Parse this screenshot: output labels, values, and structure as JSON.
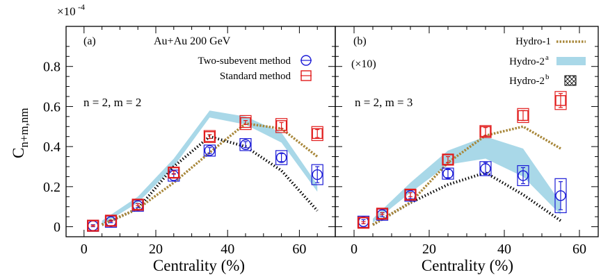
{
  "figure": {
    "y_multiplier": "×10",
    "y_multiplier_exponent": "-4"
  },
  "chart_data": [
    {
      "type": "scatter",
      "panel_label": "(a)",
      "title": "Au+Au 200 GeV",
      "annotation": "n = 2, m = 2",
      "xlabel": "Centrality (%)",
      "ylabel": "C",
      "ylabel_subscript": "n+m,nm",
      "xlim": [
        -5,
        70
      ],
      "ylim": [
        -0.05,
        1.0
      ],
      "xticks": [
        0,
        20,
        40,
        60
      ],
      "yticks": [
        0,
        0.2,
        0.4,
        0.6,
        0.8
      ],
      "ytick_labels": [
        "0",
        "0.2",
        "0.4",
        "0.6",
        "0.8"
      ],
      "grid": false,
      "legend_position": "top-right",
      "series": [
        {
          "name": "Two-subevent method",
          "kind": "points",
          "marker": "circle",
          "color": "#1a1ad6",
          "x": [
            2.5,
            7.5,
            15,
            25,
            35,
            45,
            55,
            65
          ],
          "y": [
            0.005,
            0.025,
            0.105,
            0.255,
            0.38,
            0.41,
            0.345,
            0.26
          ],
          "err": [
            0.005,
            0.005,
            0.01,
            0.01,
            0.015,
            0.015,
            0.02,
            0.04
          ],
          "sys": [
            0.02,
            0.02,
            0.025,
            0.025,
            0.025,
            0.03,
            0.035,
            0.05
          ]
        },
        {
          "name": "Standard method",
          "kind": "points",
          "marker": "square",
          "color": "#e11b1b",
          "x": [
            2.5,
            7.5,
            15,
            25,
            35,
            45,
            55,
            65
          ],
          "y": [
            0.005,
            0.03,
            0.11,
            0.27,
            0.45,
            0.52,
            0.505,
            0.465
          ],
          "err": [
            0.003,
            0.003,
            0.005,
            0.008,
            0.01,
            0.01,
            0.015,
            0.02
          ],
          "sys": [
            0.02,
            0.02,
            0.02,
            0.025,
            0.03,
            0.035,
            0.035,
            0.035
          ]
        },
        {
          "name": "Hydro-1",
          "kind": "dotted-line",
          "color": "#a8873a",
          "x": [
            5,
            15,
            25,
            35,
            45,
            55,
            65
          ],
          "y": [
            0.01,
            0.09,
            0.22,
            0.37,
            0.515,
            0.49,
            0.35
          ]
        },
        {
          "name": "Hydro-2^a",
          "kind": "band",
          "color": "#a9d8e8",
          "x": [
            5,
            15,
            25,
            35,
            45,
            55,
            65
          ],
          "y_low": [
            0.01,
            0.12,
            0.3,
            0.545,
            0.51,
            0.42,
            0.175
          ],
          "y_high": [
            0.03,
            0.15,
            0.34,
            0.58,
            0.55,
            0.47,
            0.21
          ]
        },
        {
          "name": "Hydro-2^b",
          "kind": "hatched-line",
          "color": "#000000",
          "x": [
            5,
            15,
            25,
            35,
            45,
            55,
            65
          ],
          "y": [
            0.01,
            0.09,
            0.3,
            0.45,
            0.4,
            0.28,
            0.08
          ]
        }
      ]
    },
    {
      "type": "scatter",
      "panel_label": "(b)",
      "scale_note": "(×10)",
      "annotation": "n = 2, m = 3",
      "xlabel": "Centrality (%)",
      "xlim": [
        -5,
        65
      ],
      "ylim": [
        -0.05,
        1.0
      ],
      "xticks": [
        0,
        20,
        40,
        60
      ],
      "grid": false,
      "legend_position": "top-right",
      "legend_labels": [
        "Hydro-1",
        "Hydro-2",
        "Hydro-2"
      ],
      "legend_superscripts": [
        "",
        "a",
        "b"
      ],
      "series": [
        {
          "name": "Two-subevent method",
          "kind": "points",
          "marker": "circle",
          "color": "#1a1ad6",
          "x": [
            2.5,
            7.5,
            15,
            25,
            35,
            45,
            55
          ],
          "y": [
            0.025,
            0.06,
            0.155,
            0.265,
            0.29,
            0.255,
            0.155
          ],
          "err": [
            0.01,
            0.01,
            0.015,
            0.02,
            0.03,
            0.04,
            0.07
          ],
          "sys": [
            0.02,
            0.02,
            0.02,
            0.025,
            0.035,
            0.05,
            0.085
          ]
        },
        {
          "name": "Standard method",
          "kind": "points",
          "marker": "square",
          "color": "#e11b1b",
          "x": [
            2.5,
            7.5,
            15,
            25,
            35,
            45,
            55
          ],
          "y": [
            0.02,
            0.065,
            0.16,
            0.335,
            0.475,
            0.555,
            0.63
          ],
          "err": [
            0.005,
            0.005,
            0.01,
            0.015,
            0.02,
            0.025,
            0.035
          ],
          "sys": [
            0.02,
            0.02,
            0.02,
            0.025,
            0.03,
            0.035,
            0.045
          ]
        },
        {
          "name": "Hydro-1",
          "kind": "dotted-line",
          "color": "#a8873a",
          "x": [
            5,
            15,
            25,
            35,
            45,
            55
          ],
          "y": [
            0.01,
            0.12,
            0.32,
            0.455,
            0.5,
            0.39
          ]
        },
        {
          "name": "Hydro-2^a",
          "kind": "band",
          "color": "#a9d8e8",
          "x": [
            5,
            15,
            25,
            35,
            45,
            55
          ],
          "y_low": [
            0.02,
            0.17,
            0.31,
            0.34,
            0.25,
            0.06
          ],
          "y_high": [
            0.04,
            0.22,
            0.38,
            0.45,
            0.39,
            0.12
          ]
        },
        {
          "name": "Hydro-2^b",
          "kind": "hatched-line",
          "color": "#000000",
          "x": [
            5,
            15,
            25,
            35,
            45,
            55
          ],
          "y": [
            0.01,
            0.12,
            0.21,
            0.27,
            0.16,
            0.03
          ]
        }
      ]
    }
  ]
}
